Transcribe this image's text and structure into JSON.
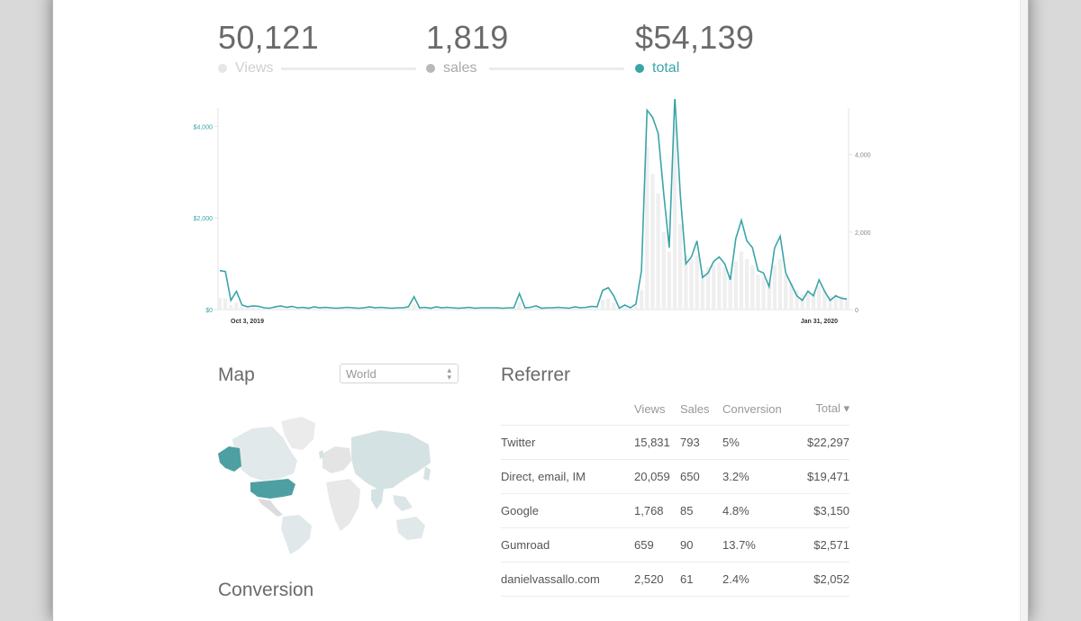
{
  "stats": {
    "views": {
      "value": "50,121",
      "label": "Views",
      "color": "#e6e6e6"
    },
    "sales": {
      "value": "1,819",
      "label": "sales",
      "color": "#b8b8b8"
    },
    "total": {
      "value": "$54,139",
      "label": "total",
      "color": "#3aa5a8"
    }
  },
  "chart_data": {
    "type": "line",
    "x_start_label": "Oct 3, 2019",
    "x_end_label": "Jan 31, 2020",
    "left_axis": {
      "ticks": [
        "$4,000",
        "$2,000",
        "$0"
      ],
      "values": [
        4000,
        2000,
        0
      ],
      "ylim": [
        0,
        4400
      ],
      "color": "#3aa5a8"
    },
    "right_axis": {
      "ticks": [
        "4,000",
        "2,000",
        "0"
      ],
      "values": [
        4000,
        2000,
        0
      ],
      "ylim": [
        0,
        5200
      ]
    },
    "total_series": [
      850,
      830,
      200,
      400,
      100,
      60,
      80,
      70,
      40,
      30,
      60,
      80,
      50,
      70,
      40,
      50,
      30,
      60,
      40,
      50,
      40,
      30,
      40,
      50,
      40,
      30,
      40,
      60,
      40,
      50,
      40,
      30,
      40,
      40,
      60,
      280,
      40,
      50,
      30,
      60,
      40,
      50,
      40,
      30,
      40,
      50,
      30,
      40,
      40,
      40,
      40,
      30,
      40,
      40,
      350,
      40,
      50,
      80,
      30,
      40,
      40,
      50,
      40,
      30,
      60,
      40,
      50,
      70,
      60,
      420,
      480,
      300,
      30,
      100,
      40,
      120,
      850,
      4350,
      4200,
      3850,
      2550,
      1350,
      4650,
      2500,
      1000,
      1150,
      1500,
      700,
      800,
      1050,
      1150,
      1000,
      650,
      1550,
      1950,
      1500,
      1350,
      850,
      800,
      500,
      1350,
      1600,
      800,
      550,
      300,
      200,
      400,
      300,
      650,
      400,
      200,
      300,
      250,
      230
    ],
    "views_series": [
      300,
      290,
      120,
      180,
      60,
      40,
      50,
      45,
      30,
      20,
      40,
      50,
      30,
      40,
      30,
      30,
      20,
      40,
      30,
      30,
      30,
      20,
      30,
      30,
      30,
      20,
      30,
      40,
      30,
      30,
      30,
      20,
      30,
      30,
      40,
      150,
      30,
      30,
      20,
      40,
      30,
      30,
      30,
      20,
      30,
      30,
      20,
      30,
      30,
      30,
      30,
      20,
      30,
      30,
      200,
      30,
      30,
      50,
      20,
      30,
      30,
      30,
      30,
      20,
      40,
      30,
      30,
      40,
      40,
      250,
      280,
      180,
      20,
      60,
      30,
      80,
      500,
      4200,
      3500,
      3000,
      2000,
      1500,
      4800,
      2200,
      1400,
      1300,
      1400,
      1000,
      1100,
      1150,
      1200,
      1100,
      900,
      1250,
      1500,
      1300,
      1150,
      900,
      850,
      700,
      1150,
      1300,
      900,
      700,
      500,
      400,
      500,
      450,
      600,
      500,
      350,
      400,
      350,
      300
    ]
  },
  "map": {
    "title": "Map",
    "select_value": "World",
    "highlight_color": "#4e9fa2",
    "base_color": "#d9e5e6"
  },
  "referrer": {
    "title": "Referrer",
    "columns": [
      "Views",
      "Sales",
      "Conversion",
      "Total ▾"
    ],
    "rows": [
      {
        "name": "Twitter",
        "views": "15,831",
        "sales": "793",
        "conversion": "5%",
        "total": "$22,297"
      },
      {
        "name": "Direct, email, IM",
        "views": "20,059",
        "sales": "650",
        "conversion": "3.2%",
        "total": "$19,471"
      },
      {
        "name": "Google",
        "views": "1,768",
        "sales": "85",
        "conversion": "4.8%",
        "total": "$3,150"
      },
      {
        "name": "Gumroad",
        "views": "659",
        "sales": "90",
        "conversion": "13.7%",
        "total": "$2,571"
      },
      {
        "name": "danielvassallo.com",
        "views": "2,520",
        "sales": "61",
        "conversion": "2.4%",
        "total": "$2,052"
      }
    ]
  },
  "conversion": {
    "title": "Conversion"
  }
}
